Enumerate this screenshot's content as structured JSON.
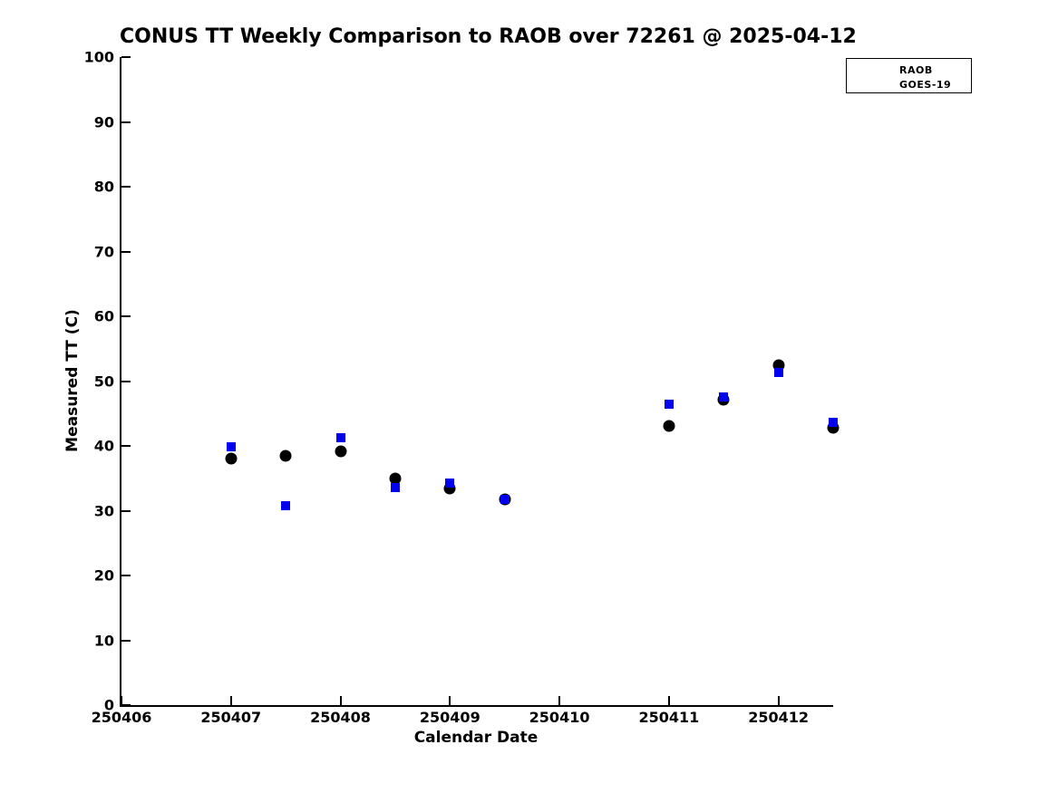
{
  "title": "CONUS TT Weekly Comparison to RAOB over 72261 @ 2025-04-12",
  "colors": {
    "raob": "#000000",
    "goes19": "#0000ee",
    "axis": "#000000",
    "background": "#ffffff"
  },
  "legend": {
    "entries": [
      {
        "label": "RAOB",
        "marker": "circle-icon",
        "color": "#000000"
      },
      {
        "label": "GOES-19",
        "marker": "square-icon",
        "color": "#0000ee"
      }
    ]
  },
  "chart_data": {
    "type": "scatter",
    "title": "CONUS TT Weekly Comparison to RAOB over 72261 @ 2025-04-12",
    "xlabel": "Calendar Date",
    "ylabel": "Measured TT (C)",
    "xlim": [
      250406,
      250412.5
    ],
    "ylim": [
      0,
      100
    ],
    "x_ticks": [
      250406,
      250407,
      250408,
      250409,
      250410,
      250411,
      250412
    ],
    "x_tick_labels": [
      "250406",
      "250407",
      "250408",
      "250409",
      "250410",
      "250411",
      "250412"
    ],
    "y_ticks": [
      0,
      10,
      20,
      30,
      40,
      50,
      60,
      70,
      80,
      90,
      100
    ],
    "y_tick_labels": [
      "0",
      "10",
      "20",
      "30",
      "40",
      "50",
      "60",
      "70",
      "80",
      "90",
      "100"
    ],
    "grid": false,
    "legend_position": "upper right",
    "x": [
      250407,
      250407.5,
      250408,
      250408.5,
      250409,
      250409.5,
      250411,
      250411.5,
      250412,
      250412.5
    ],
    "series": [
      {
        "name": "RAOB",
        "marker": "circle",
        "color": "#000000",
        "values": [
          38.1,
          38.4,
          39.2,
          34.9,
          33.4,
          31.7,
          43.1,
          47.1,
          52.4,
          42.8
        ]
      },
      {
        "name": "GOES-19",
        "marker": "square",
        "color": "#0000ee",
        "values": [
          39.8,
          30.7,
          41.3,
          33.6,
          34.3,
          31.8,
          46.5,
          47.5,
          51.3,
          43.7
        ]
      }
    ]
  }
}
